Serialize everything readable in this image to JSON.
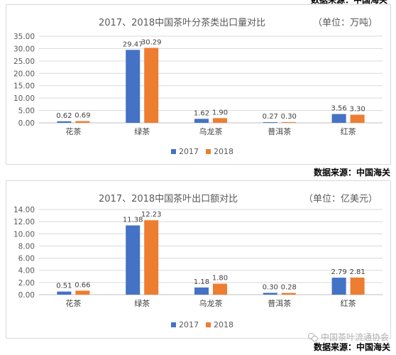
{
  "top_source": "数据来源：中国海关",
  "watermark": "中国茶叶流通协会",
  "colors": {
    "s2017": "#4472c4",
    "s2018": "#ed7d31",
    "grid": "#d9d9d9",
    "axis": "#bfbfbf"
  },
  "chart_data": [
    {
      "type": "bar",
      "title": "2017、2018中国茶叶分茶类出口量对比",
      "unit": "（单位：万吨）",
      "categories": [
        "花茶",
        "绿茶",
        "乌龙茶",
        "普洱茶",
        "红茶"
      ],
      "series": [
        {
          "name": "2017",
          "values": [
            0.62,
            29.47,
            1.62,
            0.27,
            3.56
          ]
        },
        {
          "name": "2018",
          "values": [
            0.69,
            30.29,
            1.9,
            0.3,
            3.3
          ]
        }
      ],
      "yticks": [
        "0.00",
        "5.00",
        "10.00",
        "15.00",
        "20.00",
        "25.00",
        "30.00",
        "35.00"
      ],
      "ylim": [
        0,
        35
      ],
      "grid": true,
      "legend": "bottom",
      "source": "数据来源：中国海关"
    },
    {
      "type": "bar",
      "title": "2017、2018中国茶叶出口额对比",
      "unit": "（单位：亿美元）",
      "categories": [
        "花茶",
        "绿茶",
        "乌龙茶",
        "普洱茶",
        "红茶"
      ],
      "series": [
        {
          "name": "2017",
          "values": [
            0.51,
            11.38,
            1.18,
            0.3,
            2.79
          ]
        },
        {
          "name": "2018",
          "values": [
            0.66,
            12.23,
            1.8,
            0.28,
            2.81
          ]
        }
      ],
      "yticks": [
        "0.00",
        "2.00",
        "4.00",
        "6.00",
        "8.00",
        "10.00",
        "12.00",
        "14.00"
      ],
      "ylim": [
        0,
        14
      ],
      "grid": true,
      "legend": "bottom",
      "source": "数据来源：中国海关"
    }
  ]
}
